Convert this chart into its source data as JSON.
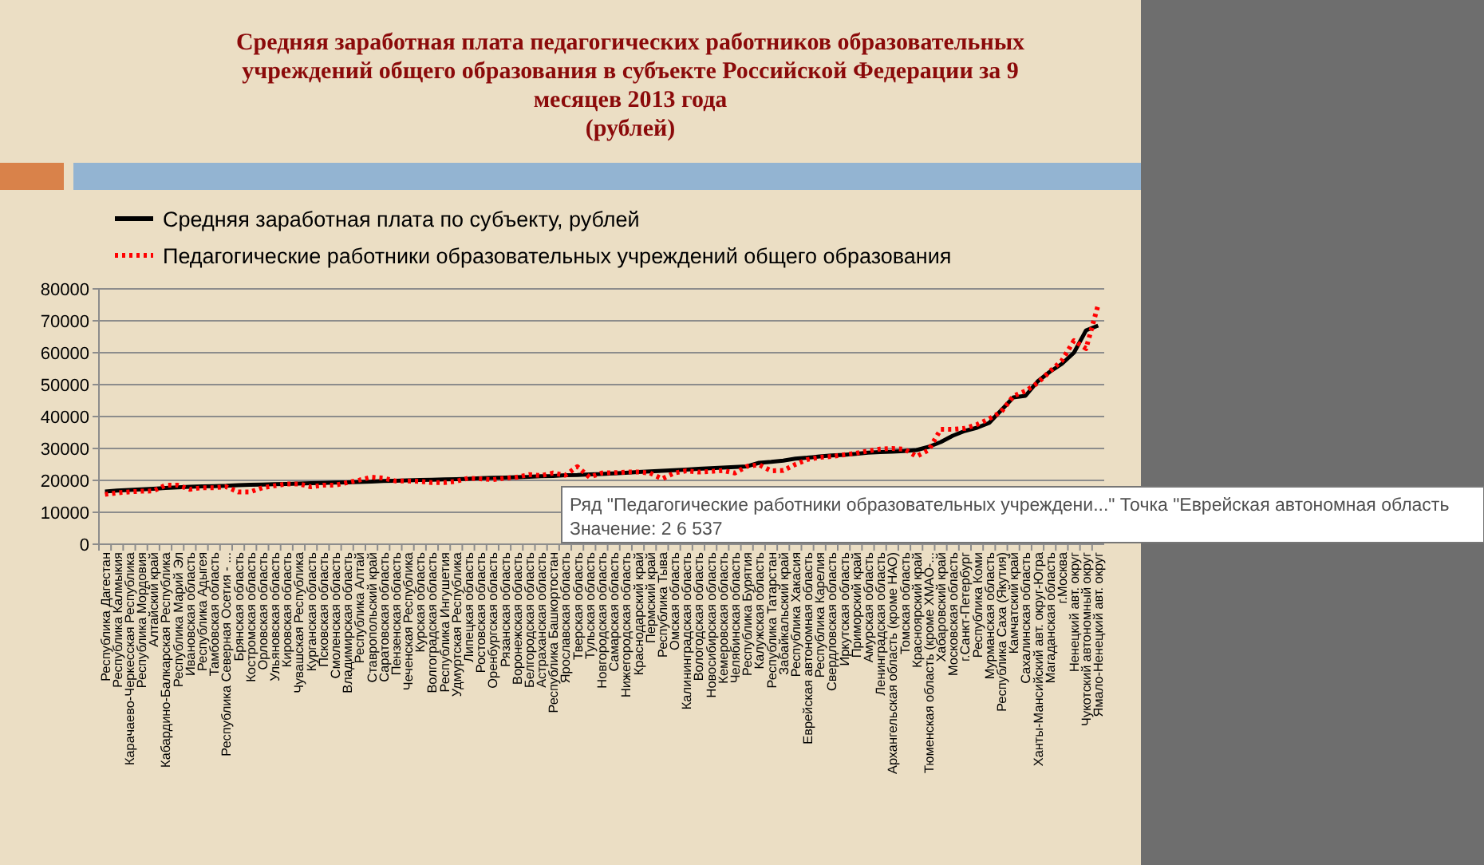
{
  "chart_data": {
    "type": "line",
    "title": "Средняя заработная плата педагогических работников образовательных учреждений общего образования в субъекте Российской Федерации  за 9 месяцев 2013 года",
    "subtitle": "(рублей)",
    "categories": [
      "Республика Дагестан",
      "Республика Калмыкия",
      "Карачаево-Черкесская Республика",
      "Республика Мордовия",
      "Алтайский край",
      "Кабардино-Балкарская Республика",
      "Республика Марий Эл",
      "Ивановская область",
      "Республика Адыгея",
      "Тамбовская область",
      "Республика Северная Осетия - ...",
      "Брянская область",
      "Костромская область",
      "Орловская область",
      "Ульяновская область",
      "Кировская область",
      "Чувашская Республика",
      "Курганская область",
      "Псковская область",
      "Смоленская область",
      "Владимирская область",
      "Республика Алтай",
      "Ставропольский край",
      "Саратовская область",
      "Пензенская область",
      "Чеченская Республика",
      "Курская область",
      "Волгоградская область",
      "Республика Ингушетия",
      "Удмуртская Республика",
      "Липецкая область",
      "Ростовская область",
      "Оренбургская область",
      "Рязанская область",
      "Воронежская область",
      "Белгородская область",
      "Астраханская область",
      "Республика Башкортостан",
      "Ярославская область",
      "Тверская область",
      "Тульская область",
      "Новгородская область",
      "Самарская область",
      "Нижегородская область",
      "Краснодарский край",
      "Пермский край",
      "Республика Тыва",
      "Омская область",
      "Калининградская область",
      "Вологодская область",
      "Новосибирская область",
      "Кемеровская область",
      "Челябинская область",
      "Республика Бурятия",
      "Калужская область",
      "Республика Татарстан",
      "Забайкальский край",
      "Республика Хакасия",
      "Еврейская автономная область",
      "Республика Карелия",
      "Свердловская область",
      "Иркутская область",
      "Приморский край",
      "Амурская область",
      "Ленинградская область",
      "Архангельская область (кроме НАО)",
      "Томская область",
      "Красноярский край",
      "Тюменская область (кроме ХМАО-...",
      "Хабаровский край",
      "Московская область",
      "г.Санкт-Петербург",
      "Республика Коми",
      "Мурманская область",
      "Республика Саха (Якутия)",
      "Камчатский край",
      "Сахалинская область",
      "Ханты-Мансийский авт. округ-Югра",
      "Магаданская область",
      "г.Москва",
      "Ненецкий авт. округ",
      "Чукотский автономный округ",
      "Ямало-Ненецкий авт. округ"
    ],
    "series": [
      {
        "name": "Средняя заработная плата по субъекту, рублей",
        "color": "#000000",
        "line_style": "solid",
        "values": [
          16500,
          16800,
          17000,
          17200,
          17400,
          17600,
          17800,
          18000,
          18100,
          18200,
          18300,
          18500,
          18600,
          18700,
          18800,
          18900,
          19000,
          19100,
          19200,
          19300,
          19400,
          19500,
          19600,
          19800,
          19900,
          20000,
          20100,
          20200,
          20300,
          20400,
          20500,
          20700,
          20800,
          20900,
          21000,
          21100,
          21300,
          21400,
          21600,
          21700,
          21900,
          22000,
          22200,
          22400,
          22600,
          22800,
          23000,
          23200,
          23400,
          23600,
          23800,
          24000,
          24200,
          24400,
          25500,
          25800,
          26200,
          26800,
          27100,
          27500,
          27800,
          28000,
          28300,
          28700,
          28900,
          29000,
          29200,
          29500,
          30500,
          32000,
          34000,
          35500,
          36500,
          38000,
          42000,
          46000,
          46500,
          51000,
          54000,
          56500,
          60000,
          67000,
          68500
        ]
      },
      {
        "name": "Педагогические работники образовательных учреждений общего образования",
        "color": "#ff0000",
        "line_style": "dotted",
        "values": [
          15600,
          16100,
          16400,
          16600,
          16700,
          18500,
          18500,
          17200,
          17700,
          17700,
          18000,
          16400,
          16400,
          17700,
          18300,
          18900,
          18900,
          18000,
          18500,
          18500,
          19300,
          20100,
          21000,
          20700,
          19800,
          19800,
          19700,
          19300,
          19300,
          19700,
          20700,
          20500,
          20200,
          20700,
          21000,
          21800,
          21500,
          22300,
          21600,
          24300,
          21000,
          22300,
          22400,
          22600,
          22600,
          22300,
          20500,
          22300,
          23000,
          22600,
          22800,
          23100,
          22300,
          24400,
          24900,
          23000,
          23100,
          25000,
          26537,
          27200,
          27500,
          28000,
          28500,
          29200,
          29800,
          30000,
          29800,
          27500,
          29500,
          36000,
          36000,
          36300,
          37500,
          39300,
          41500,
          46400,
          48000,
          50500,
          54100,
          57500,
          63800,
          61300,
          75000
        ]
      }
    ],
    "ylim": [
      0,
      80000
    ],
    "yticks": [
      0,
      10000,
      20000,
      30000,
      40000,
      50000,
      60000,
      70000,
      80000
    ],
    "grid": "y",
    "legend": "top",
    "marker": "none",
    "annotations": [
      "Ряд \"Педагогические работники образовательных учреждени...\" Точка \"Еврейская автономная область",
      "Значение: 2 6 537"
    ]
  }
}
